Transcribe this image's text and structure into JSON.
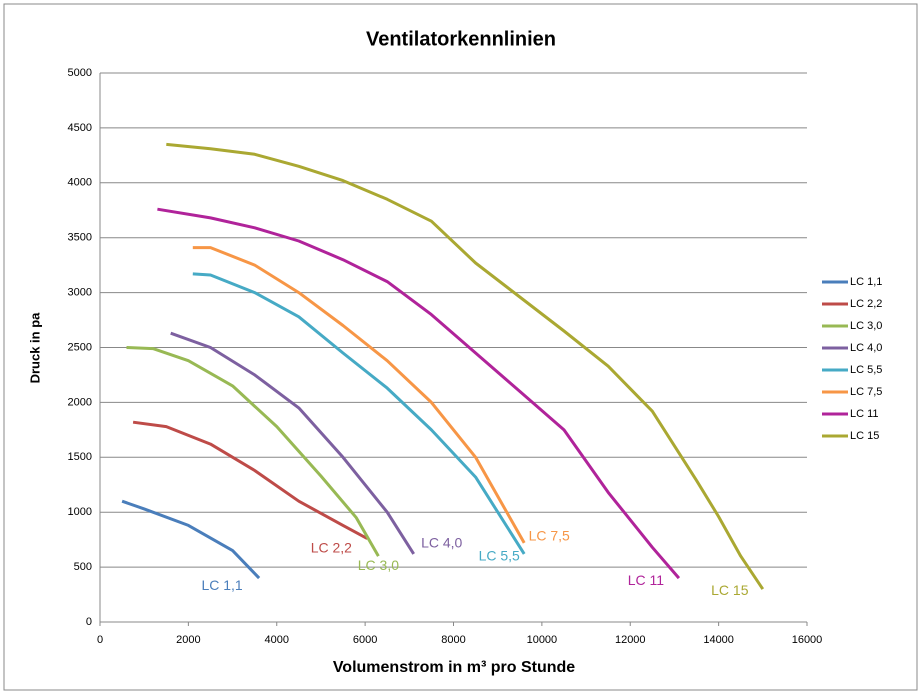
{
  "chart_data": {
    "type": "line",
    "title": "Ventilatorkennlinien",
    "x_label": "Volumenstrom in m³ pro Stunde",
    "y_label": "Druck in pa",
    "xlim": [
      0,
      16000
    ],
    "xticks": [
      0,
      2000,
      4000,
      6000,
      8000,
      10000,
      12000,
      14000,
      16000
    ],
    "ylim": [
      0,
      5000
    ],
    "yticks": [
      0,
      500,
      1000,
      1500,
      2000,
      2500,
      3000,
      3500,
      4000,
      4500,
      5000
    ],
    "grid": true,
    "legend": "right",
    "series": [
      {
        "name": "LC 1,1",
        "color": "#4a7ebb",
        "x": [
          500,
          1000,
          2000,
          3000,
          3600
        ],
        "values": [
          1100,
          1030,
          880,
          650,
          400
        ]
      },
      {
        "name": "LC 2,2",
        "color": "#be4b48",
        "x": [
          750,
          1500,
          2500,
          3500,
          4500,
          5500,
          6050
        ],
        "values": [
          1820,
          1780,
          1620,
          1380,
          1100,
          880,
          760
        ]
      },
      {
        "name": "LC 3,0",
        "color": "#98b954",
        "x": [
          600,
          1200,
          2000,
          3000,
          4000,
          5000,
          5800,
          6300
        ],
        "values": [
          2500,
          2490,
          2380,
          2150,
          1780,
          1330,
          950,
          600
        ]
      },
      {
        "name": "LC 4,0",
        "color": "#7d60a0",
        "x": [
          1600,
          2500,
          3500,
          4500,
          5500,
          6500,
          7100
        ],
        "values": [
          2630,
          2500,
          2250,
          1950,
          1500,
          1000,
          620
        ]
      },
      {
        "name": "LC 5,5",
        "color": "#46aac5",
        "x": [
          2100,
          2500,
          3500,
          4500,
          5500,
          6500,
          7500,
          8500,
          9600
        ],
        "values": [
          3170,
          3160,
          3000,
          2780,
          2450,
          2130,
          1750,
          1320,
          620
        ]
      },
      {
        "name": "LC 7,5",
        "color": "#f79646",
        "x": [
          2100,
          2500,
          3500,
          4500,
          5500,
          6500,
          7500,
          8500,
          9600
        ],
        "values": [
          3410,
          3410,
          3250,
          3000,
          2700,
          2380,
          2000,
          1500,
          720
        ]
      },
      {
        "name": "LC 11",
        "color": "#b0239a",
        "x": [
          1300,
          2500,
          3500,
          4500,
          5500,
          6500,
          7500,
          8500,
          9500,
          10500,
          11500,
          12500,
          13100
        ],
        "values": [
          3760,
          3680,
          3590,
          3470,
          3300,
          3100,
          2800,
          2450,
          2100,
          1750,
          1180,
          680,
          400
        ]
      },
      {
        "name": "LC 15",
        "color": "#aaa832",
        "x": [
          1500,
          2500,
          3500,
          4500,
          5500,
          6500,
          7500,
          8500,
          9500,
          10500,
          11500,
          12500,
          13500,
          14000,
          14500,
          15000
        ],
        "values": [
          4350,
          4310,
          4260,
          4150,
          4020,
          3850,
          3650,
          3270,
          2960,
          2650,
          2330,
          1920,
          1290,
          960,
          600,
          300
        ]
      }
    ]
  }
}
